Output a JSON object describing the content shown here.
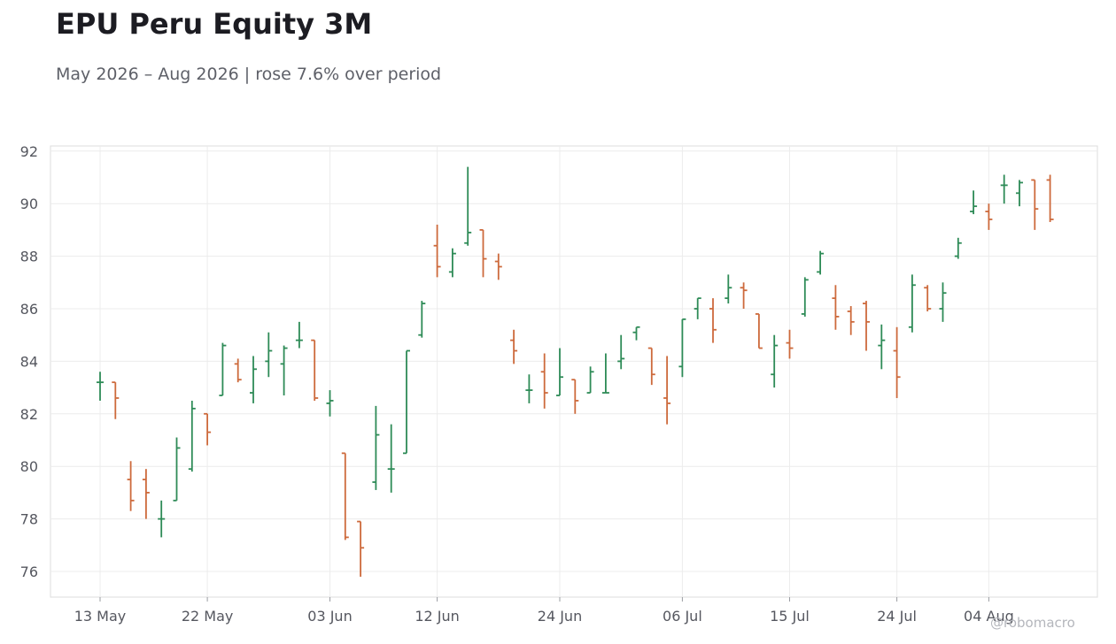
{
  "header": {
    "title": "EPU Peru Equity 3M",
    "subtitle": "May 2026 – Aug 2026 | rose 7.6% over period"
  },
  "watermark": "@robomacro",
  "colors": {
    "up": "#2e8b57",
    "down": "#cd6a3c",
    "grid": "#ececec",
    "frame": "#dcdcdc",
    "text": "#55575f"
  },
  "chart_data": {
    "type": "ohlc",
    "title": "EPU Peru Equity 3M",
    "subtitle": "May 2026 – Aug 2026 | rose 7.6% over period",
    "xlabel": "",
    "ylabel": "",
    "ylim": [
      75,
      92.2
    ],
    "grid": true,
    "y_ticks": [
      76,
      78,
      80,
      82,
      84,
      86,
      88,
      90,
      92
    ],
    "x_ticks": [
      "13 May",
      "22 May",
      "03 Jun",
      "12 Jun",
      "24 Jun",
      "06 Jul",
      "15 Jul",
      "24 Jul",
      "04 Aug"
    ],
    "bars": [
      {
        "date": "13 May",
        "open": 83.2,
        "high": 83.6,
        "low": 82.5,
        "close": 83.2
      },
      {
        "date": "14 May",
        "open": 83.2,
        "high": 83.2,
        "low": 81.8,
        "close": 82.6
      },
      {
        "date": "15 May",
        "open": 79.5,
        "high": 80.2,
        "low": 78.3,
        "close": 78.7
      },
      {
        "date": "18 May",
        "open": 79.5,
        "high": 79.9,
        "low": 78.0,
        "close": 79.0
      },
      {
        "date": "19 May",
        "open": 78.0,
        "high": 78.7,
        "low": 77.3,
        "close": 78.0
      },
      {
        "date": "20 May",
        "open": 78.7,
        "high": 81.1,
        "low": 78.7,
        "close": 80.7
      },
      {
        "date": "21 May",
        "open": 79.9,
        "high": 82.5,
        "low": 79.8,
        "close": 82.2
      },
      {
        "date": "22 May",
        "open": 82.0,
        "high": 82.0,
        "low": 80.8,
        "close": 81.3
      },
      {
        "date": "25 May",
        "open": 82.7,
        "high": 84.7,
        "low": 82.7,
        "close": 84.6
      },
      {
        "date": "26 May",
        "open": 83.9,
        "high": 84.1,
        "low": 83.2,
        "close": 83.3
      },
      {
        "date": "27 May",
        "open": 82.8,
        "high": 84.2,
        "low": 82.4,
        "close": 83.7
      },
      {
        "date": "28 May",
        "open": 84.0,
        "high": 85.1,
        "low": 83.4,
        "close": 84.4
      },
      {
        "date": "29 May",
        "open": 83.9,
        "high": 84.6,
        "low": 82.7,
        "close": 84.5
      },
      {
        "date": "01 Jun",
        "open": 84.8,
        "high": 85.5,
        "low": 84.5,
        "close": 84.8
      },
      {
        "date": "02 Jun",
        "open": 84.8,
        "high": 84.8,
        "low": 82.5,
        "close": 82.6
      },
      {
        "date": "03 Jun",
        "open": 82.4,
        "high": 82.9,
        "low": 81.9,
        "close": 82.5
      },
      {
        "date": "04 Jun",
        "open": 80.5,
        "high": 80.5,
        "low": 77.2,
        "close": 77.3
      },
      {
        "date": "05 Jun",
        "open": 77.9,
        "high": 77.9,
        "low": 75.8,
        "close": 76.9
      },
      {
        "date": "08 Jun",
        "open": 79.4,
        "high": 82.3,
        "low": 79.1,
        "close": 81.2
      },
      {
        "date": "09 Jun",
        "open": 79.9,
        "high": 81.6,
        "low": 79.0,
        "close": 79.9
      },
      {
        "date": "10 Jun",
        "open": 80.5,
        "high": 84.4,
        "low": 80.5,
        "close": 84.4
      },
      {
        "date": "11 Jun",
        "open": 85.0,
        "high": 86.3,
        "low": 84.9,
        "close": 86.2
      },
      {
        "date": "12 Jun",
        "open": 88.4,
        "high": 89.2,
        "low": 87.2,
        "close": 87.6
      },
      {
        "date": "15 Jun",
        "open": 87.4,
        "high": 88.3,
        "low": 87.2,
        "close": 88.1
      },
      {
        "date": "16 Jun",
        "open": 88.5,
        "high": 91.4,
        "low": 88.4,
        "close": 88.9
      },
      {
        "date": "17 Jun",
        "open": 89.0,
        "high": 89.0,
        "low": 87.2,
        "close": 87.9
      },
      {
        "date": "18 Jun",
        "open": 87.8,
        "high": 88.1,
        "low": 87.1,
        "close": 87.6
      },
      {
        "date": "19 Jun",
        "open": 84.8,
        "high": 85.2,
        "low": 83.9,
        "close": 84.4
      },
      {
        "date": "22 Jun",
        "open": 82.9,
        "high": 83.5,
        "low": 82.4,
        "close": 82.9
      },
      {
        "date": "23 Jun",
        "open": 83.6,
        "high": 84.3,
        "low": 82.2,
        "close": 82.8
      },
      {
        "date": "24 Jun",
        "open": 82.7,
        "high": 84.5,
        "low": 82.7,
        "close": 83.4
      },
      {
        "date": "25 Jun",
        "open": 83.3,
        "high": 83.3,
        "low": 82.0,
        "close": 82.5
      },
      {
        "date": "26 Jun",
        "open": 82.8,
        "high": 83.8,
        "low": 82.8,
        "close": 83.6
      },
      {
        "date": "29 Jun",
        "open": 82.8,
        "high": 84.3,
        "low": 82.8,
        "close": 82.8
      },
      {
        "date": "30 Jun",
        "open": 84.0,
        "high": 85.0,
        "low": 83.7,
        "close": 84.1
      },
      {
        "date": "01 Jul",
        "open": 85.1,
        "high": 85.3,
        "low": 84.8,
        "close": 85.3
      },
      {
        "date": "02 Jul",
        "open": 84.5,
        "high": 84.5,
        "low": 83.1,
        "close": 83.5
      },
      {
        "date": "03 Jul",
        "open": 82.6,
        "high": 84.2,
        "low": 81.6,
        "close": 82.4
      },
      {
        "date": "06 Jul",
        "open": 83.8,
        "high": 85.6,
        "low": 83.4,
        "close": 85.6
      },
      {
        "date": "07 Jul",
        "open": 86.0,
        "high": 86.4,
        "low": 85.6,
        "close": 86.4
      },
      {
        "date": "08 Jul",
        "open": 86.0,
        "high": 86.4,
        "low": 84.7,
        "close": 85.2
      },
      {
        "date": "09 Jul",
        "open": 86.4,
        "high": 87.3,
        "low": 86.2,
        "close": 86.8
      },
      {
        "date": "10 Jul",
        "open": 86.8,
        "high": 87.0,
        "low": 86.0,
        "close": 86.7
      },
      {
        "date": "13 Jul",
        "open": 85.8,
        "high": 85.8,
        "low": 84.5,
        "close": 84.5
      },
      {
        "date": "14 Jul",
        "open": 83.5,
        "high": 85.0,
        "low": 83.0,
        "close": 84.6
      },
      {
        "date": "15 Jul",
        "open": 84.7,
        "high": 85.2,
        "low": 84.1,
        "close": 84.5
      },
      {
        "date": "16 Jul",
        "open": 85.8,
        "high": 87.2,
        "low": 85.7,
        "close": 87.1
      },
      {
        "date": "17 Jul",
        "open": 87.4,
        "high": 88.2,
        "low": 87.3,
        "close": 88.1
      },
      {
        "date": "20 Jul",
        "open": 86.4,
        "high": 86.9,
        "low": 85.2,
        "close": 85.7
      },
      {
        "date": "21 Jul",
        "open": 85.9,
        "high": 86.1,
        "low": 85.0,
        "close": 85.5
      },
      {
        "date": "22 Jul",
        "open": 86.2,
        "high": 86.3,
        "low": 84.4,
        "close": 85.5
      },
      {
        "date": "23 Jul",
        "open": 84.6,
        "high": 85.4,
        "low": 83.7,
        "close": 84.8
      },
      {
        "date": "24 Jul",
        "open": 84.4,
        "high": 85.3,
        "low": 82.6,
        "close": 83.4
      },
      {
        "date": "27 Jul",
        "open": 85.3,
        "high": 87.3,
        "low": 85.1,
        "close": 86.9
      },
      {
        "date": "28 Jul",
        "open": 86.8,
        "high": 86.9,
        "low": 85.9,
        "close": 86.0
      },
      {
        "date": "29 Jul",
        "open": 86.0,
        "high": 87.0,
        "low": 85.5,
        "close": 86.6
      },
      {
        "date": "31 Jul",
        "open": 88.0,
        "high": 88.7,
        "low": 87.9,
        "close": 88.5
      },
      {
        "date": "03 Aug",
        "open": 89.7,
        "high": 90.5,
        "low": 89.6,
        "close": 89.9
      },
      {
        "date": "04 Aug",
        "open": 89.7,
        "high": 90.0,
        "low": 89.0,
        "close": 89.4
      },
      {
        "date": "05 Aug",
        "open": 90.7,
        "high": 91.1,
        "low": 90.0,
        "close": 90.7
      },
      {
        "date": "06 Aug",
        "open": 90.4,
        "high": 90.9,
        "low": 89.9,
        "close": 90.8
      },
      {
        "date": "07 Aug",
        "open": 90.9,
        "high": 90.9,
        "low": 89.0,
        "close": 89.8
      },
      {
        "date": "10 Aug",
        "open": 90.9,
        "high": 91.1,
        "low": 89.3,
        "close": 89.4
      }
    ]
  }
}
